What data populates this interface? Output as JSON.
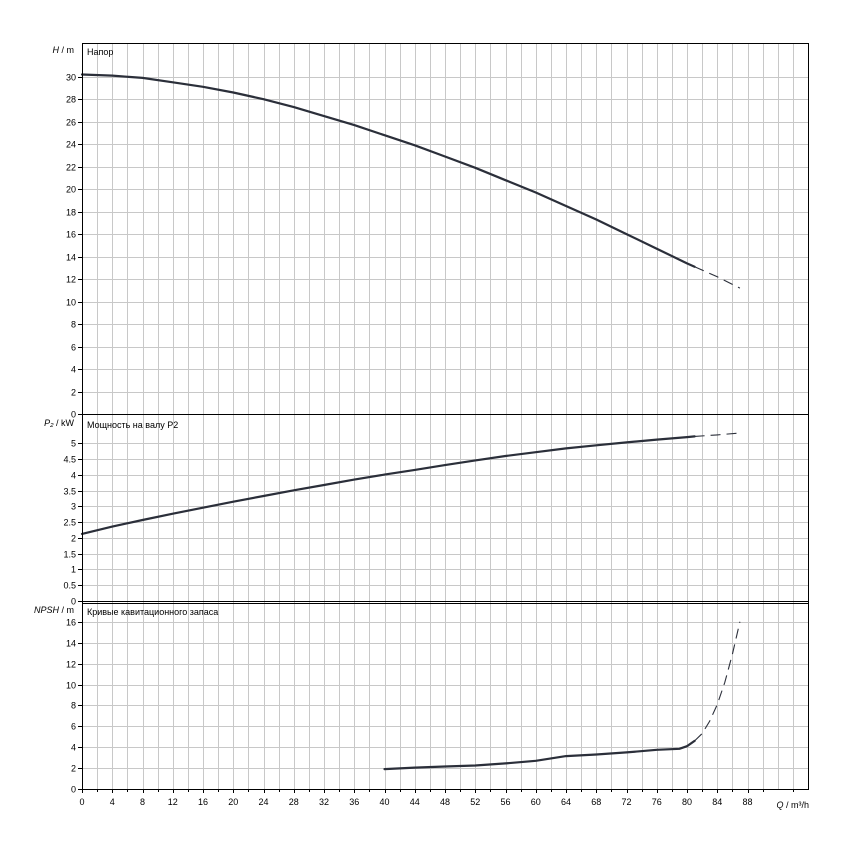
{
  "chart_data": [
    {
      "type": "line",
      "title": "Напор",
      "ylabel_symbol": "H",
      "ylabel_unit": " / m",
      "ylim": [
        0,
        33
      ],
      "yticks": [
        0,
        2,
        4,
        6,
        8,
        10,
        12,
        14,
        16,
        18,
        20,
        22,
        24,
        26,
        28,
        30
      ],
      "grid": true,
      "series": [
        {
          "style": "solid",
          "x": [
            0,
            4,
            8,
            12,
            16,
            20,
            24,
            28,
            32,
            36,
            40,
            44,
            48,
            52,
            56,
            60,
            64,
            68,
            72,
            76,
            80,
            81
          ],
          "y": [
            30.2,
            30.1,
            29.9,
            29.5,
            29.1,
            28.6,
            28.0,
            27.3,
            26.5,
            25.7,
            24.8,
            23.9,
            22.9,
            21.9,
            20.8,
            19.7,
            18.5,
            17.3,
            16.0,
            14.7,
            13.4,
            13.1
          ]
        },
        {
          "style": "dashed",
          "x": [
            81,
            84,
            87
          ],
          "y": [
            13.1,
            12.2,
            11.2
          ]
        }
      ]
    },
    {
      "type": "line",
      "title": "Мощность на валу P2",
      "ylabel_symbol": "P₂",
      "ylabel_unit": " / kW",
      "ylim": [
        0,
        5.9
      ],
      "yticks": [
        "0",
        "0.5",
        "1",
        "1.5",
        "2",
        "2.5",
        "3",
        "3.5",
        "4",
        "4.5",
        "5"
      ],
      "grid": true,
      "series": [
        {
          "style": "solid",
          "x": [
            0,
            4,
            8,
            12,
            16,
            20,
            24,
            28,
            32,
            36,
            40,
            44,
            48,
            52,
            56,
            60,
            64,
            68,
            72,
            76,
            80,
            81
          ],
          "y": [
            2.13,
            2.36,
            2.57,
            2.77,
            2.96,
            3.15,
            3.33,
            3.51,
            3.68,
            3.85,
            4.01,
            4.16,
            4.31,
            4.46,
            4.6,
            4.72,
            4.84,
            4.94,
            5.03,
            5.12,
            5.2,
            5.22
          ]
        },
        {
          "style": "dashed",
          "x": [
            81,
            84,
            87
          ],
          "y": [
            5.22,
            5.27,
            5.33
          ]
        }
      ]
    },
    {
      "type": "line",
      "title": "Кривые кавитационного запаса",
      "ylabel_symbol": "NPSH",
      "ylabel_unit": " / m",
      "ylim": [
        0,
        17.8
      ],
      "yticks": [
        0,
        2,
        4,
        6,
        8,
        10,
        12,
        14,
        16
      ],
      "grid": true,
      "series": [
        {
          "style": "solid",
          "x": [
            40,
            44,
            48,
            52,
            56,
            60,
            64,
            68,
            72,
            76,
            79,
            80,
            81
          ],
          "y": [
            1.9,
            2.05,
            2.15,
            2.25,
            2.45,
            2.7,
            3.15,
            3.3,
            3.5,
            3.75,
            3.85,
            4.1,
            4.6
          ]
        },
        {
          "style": "dashed",
          "x": [
            81,
            82,
            83,
            84,
            85,
            86,
            87
          ],
          "y": [
            4.6,
            5.3,
            6.5,
            8.1,
            10.2,
            12.9,
            16.0
          ]
        }
      ]
    }
  ],
  "x_axis": {
    "xlim": [
      0,
      96
    ],
    "ticks": [
      0,
      4,
      8,
      12,
      16,
      20,
      24,
      28,
      32,
      36,
      40,
      44,
      48,
      52,
      56,
      60,
      64,
      68,
      72,
      76,
      80,
      84,
      88
    ],
    "label_symbol": "Q",
    "label_unit": " / m³/h"
  },
  "colors": {
    "curve": "#2b2f3a",
    "grid": "#c8c8c8",
    "frame": "#000000"
  }
}
